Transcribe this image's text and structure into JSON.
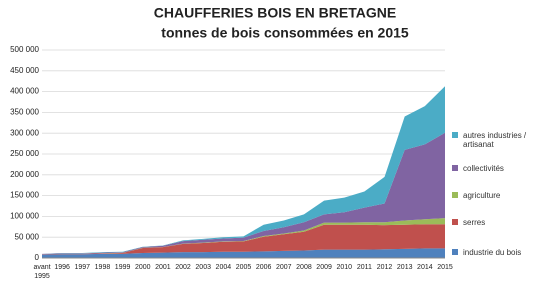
{
  "chart_data": {
    "type": "stacked_area",
    "title": "CHAUFFERIES BOIS EN BRETAGNE",
    "subtitle": "tonnes de bois consommées en 2015",
    "categories": [
      "avant 1995",
      "1996",
      "1997",
      "1998",
      "1999",
      "2000",
      "2001",
      "2002",
      "2003",
      "2004",
      "2005",
      "2006",
      "2007",
      "2008",
      "2009",
      "2010",
      "2011",
      "2012",
      "2013",
      "2014",
      "2015"
    ],
    "series": [
      {
        "name": "industrie du bois",
        "color": "#4f81bd",
        "values": [
          8000,
          9000,
          9000,
          10000,
          10000,
          12000,
          13000,
          14000,
          14000,
          15000,
          15000,
          16000,
          17000,
          18000,
          20000,
          20000,
          20000,
          21000,
          22000,
          23000,
          23000
        ]
      },
      {
        "name": "serres",
        "color": "#c0504d",
        "values": [
          1000,
          1000,
          1000,
          1000,
          2000,
          12000,
          13000,
          20000,
          22000,
          24000,
          25000,
          35000,
          40000,
          45000,
          60000,
          60000,
          60000,
          58000,
          58000,
          58000,
          58000
        ]
      },
      {
        "name": "agriculture",
        "color": "#9bbb59",
        "values": [
          0,
          0,
          0,
          500,
          500,
          500,
          500,
          500,
          1000,
          1000,
          1000,
          2000,
          2000,
          3000,
          5000,
          5000,
          6000,
          7000,
          10000,
          12000,
          15000
        ]
      },
      {
        "name": "collectivités",
        "color": "#8064a2",
        "values": [
          1000,
          1000,
          1000,
          1500,
          1500,
          2000,
          3000,
          6000,
          7000,
          7000,
          8000,
          12000,
          15000,
          20000,
          20000,
          25000,
          35000,
          45000,
          170000,
          180000,
          205000
        ]
      },
      {
        "name": "autres industries / artisanat",
        "color": "#4bacc6",
        "values": [
          0,
          1000,
          1000,
          1000,
          1000,
          500,
          500,
          2000,
          2000,
          3000,
          3000,
          15000,
          16000,
          19000,
          33000,
          35000,
          39000,
          64000,
          80000,
          92000,
          112000
        ]
      }
    ],
    "ylim": [
      0,
      500000
    ],
    "yticks": [
      0,
      {
        "value": 50000,
        "label": "50 000"
      },
      {
        "value": 100000,
        "label": "100 000"
      },
      {
        "value": 150000,
        "label": "150 000"
      },
      {
        "value": 200000,
        "label": "200 000"
      },
      {
        "value": 250000,
        "label": "250 000"
      },
      {
        "value": 300000,
        "label": "300 000"
      },
      {
        "value": 350000,
        "label": "350 000"
      },
      {
        "value": 400000,
        "label": "400 000"
      },
      {
        "value": 450000,
        "label": "450 000"
      },
      {
        "value": 500000,
        "label": "500 000"
      }
    ],
    "grid": true
  }
}
